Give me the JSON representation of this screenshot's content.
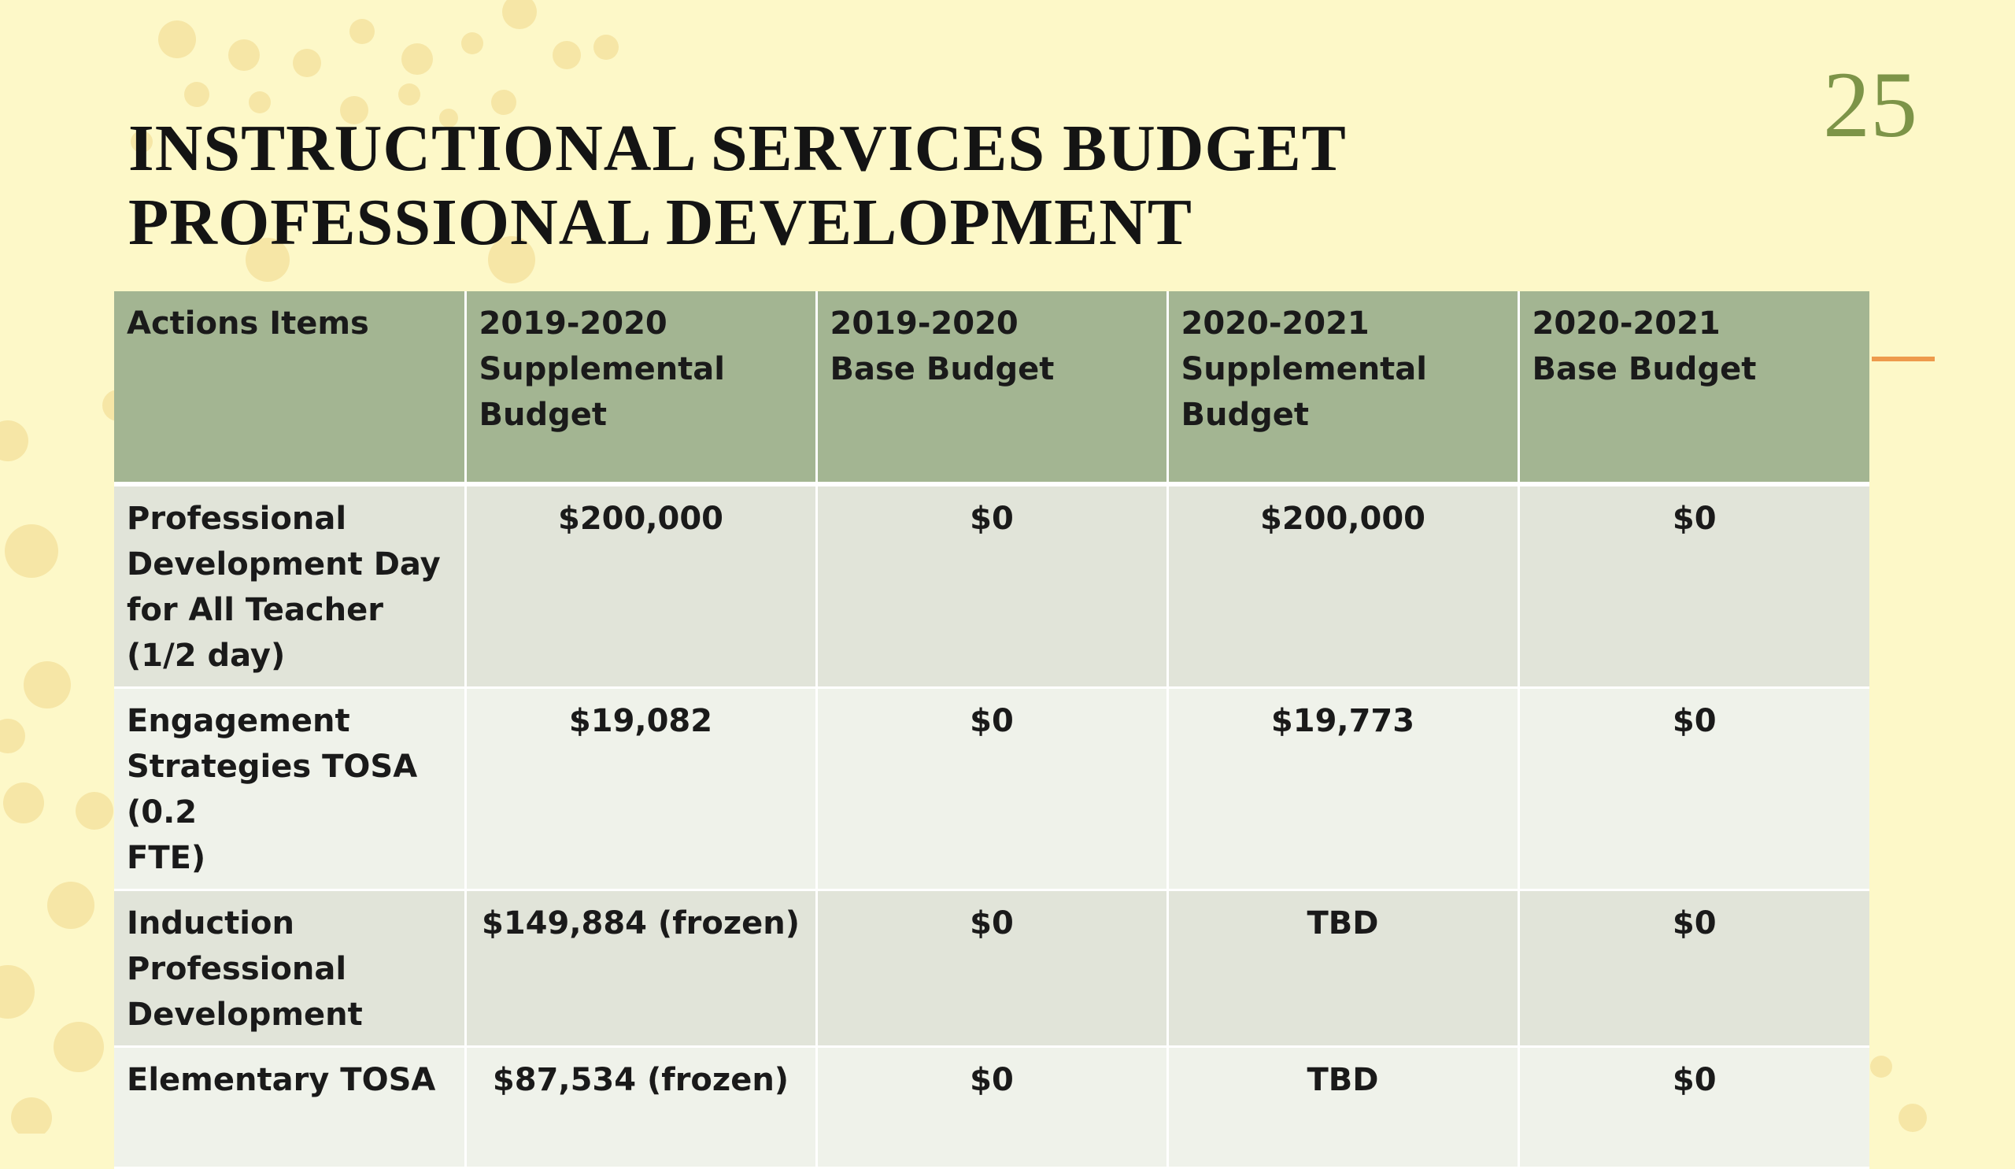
{
  "slide_number": "25",
  "title": {
    "line1": "INSTRUCTIONAL SERVICES BUDGET",
    "line2": "PROFESSIONAL DEVELOPMENT"
  },
  "colors": {
    "background": "#fdf8c8",
    "dots": "#f6e6a6",
    "header_fill": "#a3b592",
    "row_dark": "#e1e4d9",
    "row_light": "#eff2ea",
    "slide_number": "#7d9448",
    "accent_line": "#ee9a4c"
  },
  "table": {
    "headers": [
      [
        "Actions Items"
      ],
      [
        "2019-2020",
        "Supplemental",
        "Budget"
      ],
      [
        "2019-2020",
        "Base Budget"
      ],
      [
        "2020-2021",
        "Supplemental",
        "Budget"
      ],
      [
        "2020-2021",
        "Base Budget"
      ]
    ],
    "rows": [
      {
        "item_lines": [
          "Professional",
          "Development Day",
          "for All Teacher",
          "(1/2 day)"
        ],
        "values": [
          "$200,000",
          "$0",
          "$200,000",
          "$0"
        ]
      },
      {
        "item_lines": [
          "Engagement",
          "Strategies TOSA (0.2",
          "FTE)"
        ],
        "values": [
          "$19,082",
          "$0",
          "$19,773",
          "$0"
        ]
      },
      {
        "item_lines": [
          "Induction",
          "Professional",
          "Development"
        ],
        "values": [
          "$149,884 (frozen)",
          "$0",
          "TBD",
          "$0"
        ]
      },
      {
        "item_lines": [
          "Elementary TOSA"
        ],
        "values": [
          "$87,534 (frozen)",
          "$0",
          "TBD",
          "$0"
        ]
      }
    ]
  }
}
